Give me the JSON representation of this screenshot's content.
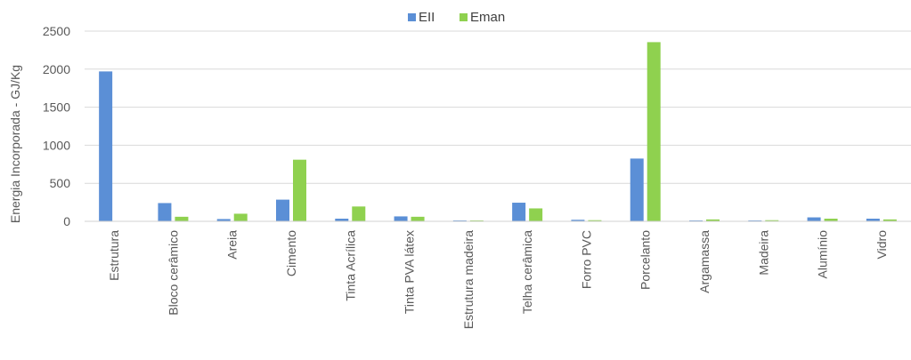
{
  "chart_data": {
    "type": "bar",
    "title": "",
    "xlabel": "",
    "ylabel": "Energia Incorporada - GJ/Kg",
    "ylim": [
      0,
      2500
    ],
    "yticks": [
      0,
      500,
      1000,
      1500,
      2000,
      2500
    ],
    "grid": true,
    "legend_position": "top",
    "categories": [
      "Estrutura",
      "Bloco cerâmico",
      "Areia",
      "Cimento",
      "Tinta Acrílica",
      "Tinta PVA látex",
      "Estrutura madeira",
      "Telha cerâmica",
      "Forro PVC",
      "Porcelanto",
      "Argamassa",
      "Madeira",
      "Alumínio",
      "Vidro"
    ],
    "series": [
      {
        "name": "EII",
        "color": "#5b8fd6",
        "values": [
          1970,
          240,
          30,
          285,
          35,
          65,
          10,
          245,
          20,
          825,
          8,
          8,
          52,
          35
        ]
      },
      {
        "name": "Eman",
        "color": "#8fd14f",
        "values": [
          0,
          60,
          100,
          810,
          195,
          60,
          5,
          170,
          15,
          2355,
          25,
          15,
          35,
          25
        ]
      }
    ]
  }
}
